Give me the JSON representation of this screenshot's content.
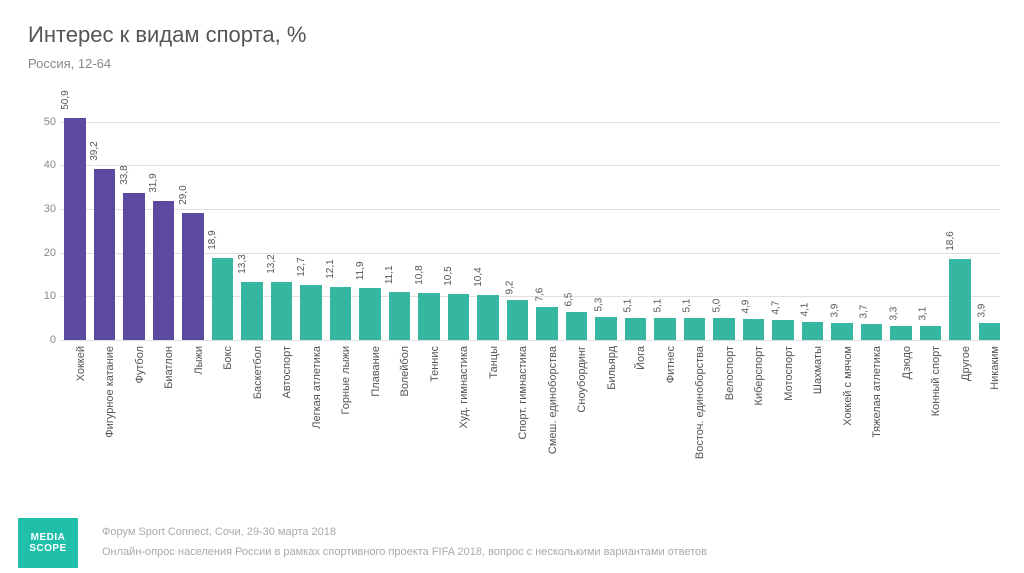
{
  "title": "Интерес к видам спорта, %",
  "subtitle": "Россия, 12-64",
  "chart": {
    "type": "bar",
    "ylim": [
      0,
      55
    ],
    "yticks": [
      0,
      10,
      20,
      30,
      40,
      50
    ],
    "grid_color": "#e0e0e0",
    "background_color": "#ffffff",
    "text_color": "#555555",
    "axis_text_color": "#888888",
    "value_fontsize": 10,
    "label_fontsize": 11,
    "colors": {
      "primary": "#5b4a9f",
      "secondary": "#36b5a0"
    },
    "bars": [
      {
        "label": "Хоккей",
        "value": 50.9,
        "value_text": "50,9",
        "color": "primary"
      },
      {
        "label": "Фигурное катание",
        "value": 39.2,
        "value_text": "39,2",
        "color": "primary"
      },
      {
        "label": "Футбол",
        "value": 33.8,
        "value_text": "33,8",
        "color": "primary"
      },
      {
        "label": "Биатлон",
        "value": 31.9,
        "value_text": "31,9",
        "color": "primary"
      },
      {
        "label": "Лыжи",
        "value": 29.0,
        "value_text": "29,0",
        "color": "primary"
      },
      {
        "label": "Бокс",
        "value": 18.9,
        "value_text": "18,9",
        "color": "secondary"
      },
      {
        "label": "Баскетбол",
        "value": 13.3,
        "value_text": "13,3",
        "color": "secondary"
      },
      {
        "label": "Автоспорт",
        "value": 13.2,
        "value_text": "13,2",
        "color": "secondary"
      },
      {
        "label": "Легкая атлетика",
        "value": 12.7,
        "value_text": "12,7",
        "color": "secondary"
      },
      {
        "label": "Горные лыжи",
        "value": 12.1,
        "value_text": "12,1",
        "color": "secondary"
      },
      {
        "label": "Плавание",
        "value": 11.9,
        "value_text": "11,9",
        "color": "secondary"
      },
      {
        "label": "Волейбол",
        "value": 11.1,
        "value_text": "11,1",
        "color": "secondary"
      },
      {
        "label": "Теннис",
        "value": 10.8,
        "value_text": "10,8",
        "color": "secondary"
      },
      {
        "label": "Худ. гимнастика",
        "value": 10.5,
        "value_text": "10,5",
        "color": "secondary"
      },
      {
        "label": "Танцы",
        "value": 10.4,
        "value_text": "10,4",
        "color": "secondary"
      },
      {
        "label": "Спорт. гимнастика",
        "value": 9.2,
        "value_text": "9,2",
        "color": "secondary"
      },
      {
        "label": "Смеш. единоборства",
        "value": 7.6,
        "value_text": "7,6",
        "color": "secondary"
      },
      {
        "label": "Сноубординг",
        "value": 6.5,
        "value_text": "6,5",
        "color": "secondary"
      },
      {
        "label": "Бильярд",
        "value": 5.3,
        "value_text": "5,3",
        "color": "secondary"
      },
      {
        "label": "Йога",
        "value": 5.1,
        "value_text": "5,1",
        "color": "secondary"
      },
      {
        "label": "Фитнес",
        "value": 5.1,
        "value_text": "5,1",
        "color": "secondary"
      },
      {
        "label": "Восточ. единоборства",
        "value": 5.1,
        "value_text": "5,1",
        "color": "secondary"
      },
      {
        "label": "Велоспорт",
        "value": 5.0,
        "value_text": "5,0",
        "color": "secondary"
      },
      {
        "label": "Киберспорт",
        "value": 4.9,
        "value_text": "4,9",
        "color": "secondary"
      },
      {
        "label": "Мотоспорт",
        "value": 4.7,
        "value_text": "4,7",
        "color": "secondary"
      },
      {
        "label": "Шахматы",
        "value": 4.1,
        "value_text": "4,1",
        "color": "secondary"
      },
      {
        "label": "Хоккей с мячом",
        "value": 3.9,
        "value_text": "3,9",
        "color": "secondary"
      },
      {
        "label": "Тяжелая атлетика",
        "value": 3.7,
        "value_text": "3,7",
        "color": "secondary"
      },
      {
        "label": "Дзюдо",
        "value": 3.3,
        "value_text": "3,3",
        "color": "secondary"
      },
      {
        "label": "Конный спорт",
        "value": 3.1,
        "value_text": "3,1",
        "color": "secondary"
      },
      {
        "label": "Другое",
        "value": 18.6,
        "value_text": "18,6",
        "color": "secondary"
      },
      {
        "label": "Никаким",
        "value": 3.9,
        "value_text": "3,9",
        "color": "secondary"
      }
    ]
  },
  "logo": {
    "line1": "MEDIA",
    "line2": "SCOPE"
  },
  "footer": {
    "line1": "Форум Sport Connect, Сочи, 29-30 марта 2018",
    "line2": "Онлайн-опрос населения России в рамках спортивного проекта FIFA 2018, вопрос с несколькими вариантами ответов"
  }
}
